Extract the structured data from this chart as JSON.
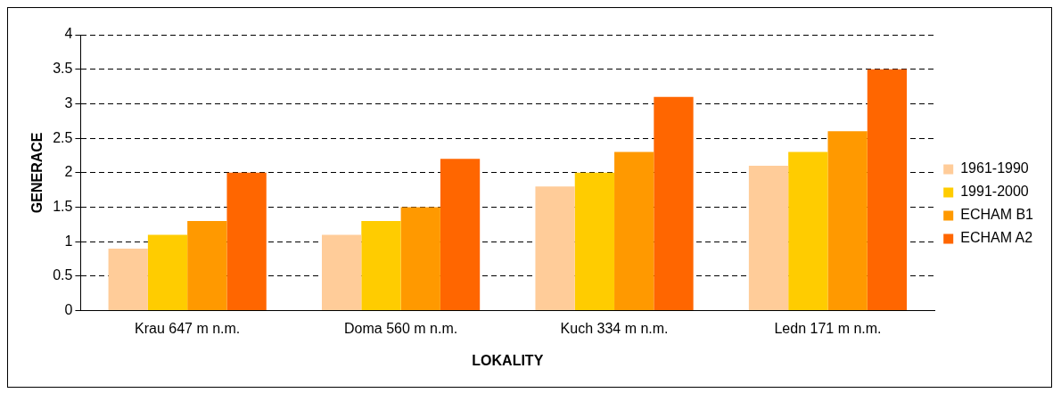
{
  "chart_data": {
    "type": "bar",
    "xlabel": "LOKALITY",
    "ylabel": "GENERACE",
    "categories": [
      "Krau 647 m n.m.",
      "Doma 560 m n.m.",
      "Kuch 334 m n.m.",
      "Ledn 171 m n.m."
    ],
    "series": [
      {
        "name": "1961-1990",
        "color": "#ffcc99",
        "values": [
          0.9,
          1.1,
          1.8,
          2.1
        ]
      },
      {
        "name": "1991-2000",
        "color": "#ffcc00",
        "values": [
          1.1,
          1.3,
          2.0,
          2.3
        ]
      },
      {
        "name": "ECHAM B1",
        "color": "#ff9900",
        "values": [
          1.3,
          1.5,
          2.3,
          2.6
        ]
      },
      {
        "name": "ECHAM A2",
        "color": "#ff6600",
        "values": [
          2.0,
          2.2,
          3.1,
          3.5
        ]
      }
    ],
    "ylim": [
      0,
      4
    ],
    "yticks": [
      0,
      0.5,
      1,
      1.5,
      2,
      2.5,
      3,
      3.5,
      4
    ],
    "grid": "y",
    "legend": "right"
  }
}
